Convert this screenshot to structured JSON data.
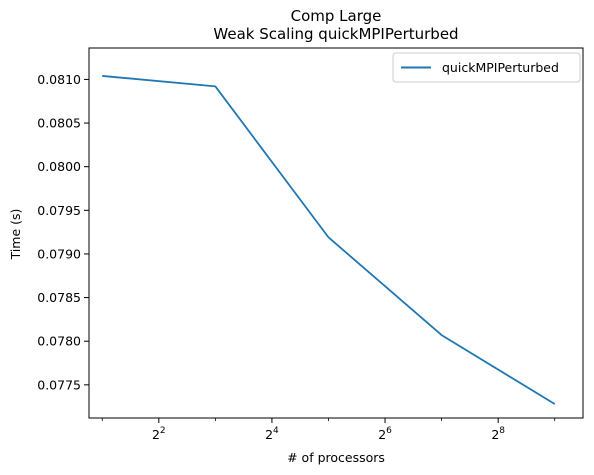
{
  "chart_data": {
    "type": "line",
    "title": "Comp Large",
    "subtitle": "Weak Scaling quickMPIPerturbed",
    "xlabel": "# of processors",
    "ylabel": "Time (s)",
    "xscale": "log2",
    "xlim": [
      1.7,
      724
    ],
    "ylim": [
      0.07712,
      0.08136
    ],
    "x_ticks": [
      {
        "value": 4,
        "base": "2",
        "exp": "2"
      },
      {
        "value": 16,
        "base": "2",
        "exp": "4"
      },
      {
        "value": 64,
        "base": "2",
        "exp": "6"
      },
      {
        "value": 256,
        "base": "2",
        "exp": "8"
      }
    ],
    "y_ticks": [
      {
        "value": 0.0775,
        "label": "0.0775"
      },
      {
        "value": 0.078,
        "label": "0.0780"
      },
      {
        "value": 0.0785,
        "label": "0.0785"
      },
      {
        "value": 0.079,
        "label": "0.0790"
      },
      {
        "value": 0.0795,
        "label": "0.0795"
      },
      {
        "value": 0.08,
        "label": "0.0800"
      },
      {
        "value": 0.0805,
        "label": "0.0805"
      },
      {
        "value": 0.081,
        "label": "0.0810"
      }
    ],
    "legend": "top-right",
    "grid": false,
    "series": [
      {
        "name": "quickMPIPerturbed",
        "color": "#1f77b4",
        "x": [
          2,
          8,
          32,
          128,
          512
        ],
        "y": [
          0.08104,
          0.08092,
          0.07919,
          0.07807,
          0.07728
        ]
      }
    ]
  }
}
